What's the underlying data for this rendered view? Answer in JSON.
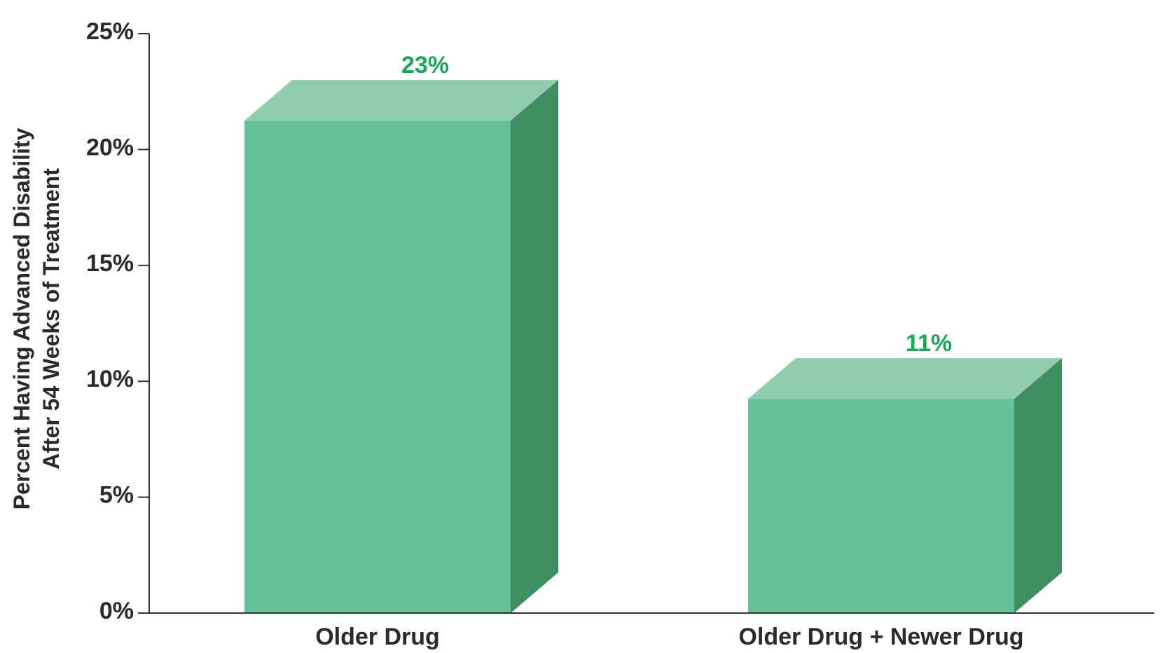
{
  "chart_data": {
    "type": "bar",
    "style": "3d",
    "categories": [
      "Older Drug",
      "Older Drug + Newer Drug"
    ],
    "values": [
      23,
      11
    ],
    "data_labels": [
      "23%",
      "11%"
    ],
    "ylabel_lines": [
      "Percent Having Advanced Disability",
      "After 54 Weeks of Treatment"
    ],
    "ylim": [
      0,
      25
    ],
    "yticks": [
      0,
      5,
      10,
      15,
      20,
      25
    ],
    "ytick_labels": [
      "0%",
      "5%",
      "10%",
      "15%",
      "20%",
      "25%"
    ],
    "grid": false,
    "legend": "none",
    "colors": {
      "front": "#66c296",
      "top": "#90cdae",
      "side": "#3d8e61",
      "label": "#1fa55a",
      "axis": "#333333"
    }
  }
}
